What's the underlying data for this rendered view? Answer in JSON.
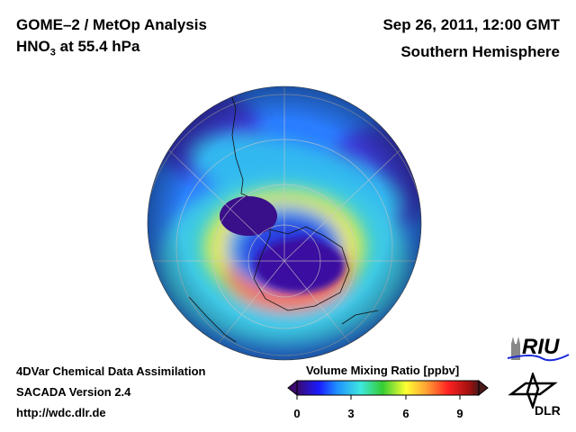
{
  "header": {
    "title_line1": "GOME–2 / MetOp Analysis",
    "title_line2_prefix": "HNO",
    "title_line2_sub": "3",
    "title_line2_suffix": " at 55.4 hPa",
    "date": "Sep 26, 2011, 12:00 GMT",
    "region": "Southern Hemisphere"
  },
  "footer": {
    "line1": "4DVar Chemical Data Assimilation",
    "line2": "SACADA Version 2.4",
    "line3": "http://wdc.dlr.de"
  },
  "colorbar": {
    "title": "Volume Mixing Ratio [ppbv]",
    "ticks": [
      "0",
      "3",
      "6",
      "9"
    ],
    "range": [
      0,
      10
    ],
    "colors": [
      "#3a0a6e",
      "#1a1aff",
      "#1e90ff",
      "#3fe8e0",
      "#33cc33",
      "#ffff33",
      "#ff9933",
      "#ff2222",
      "#a01010",
      "#4a1a1a"
    ]
  },
  "logos": {
    "riu": "RIU",
    "dlr": "DLR"
  }
}
